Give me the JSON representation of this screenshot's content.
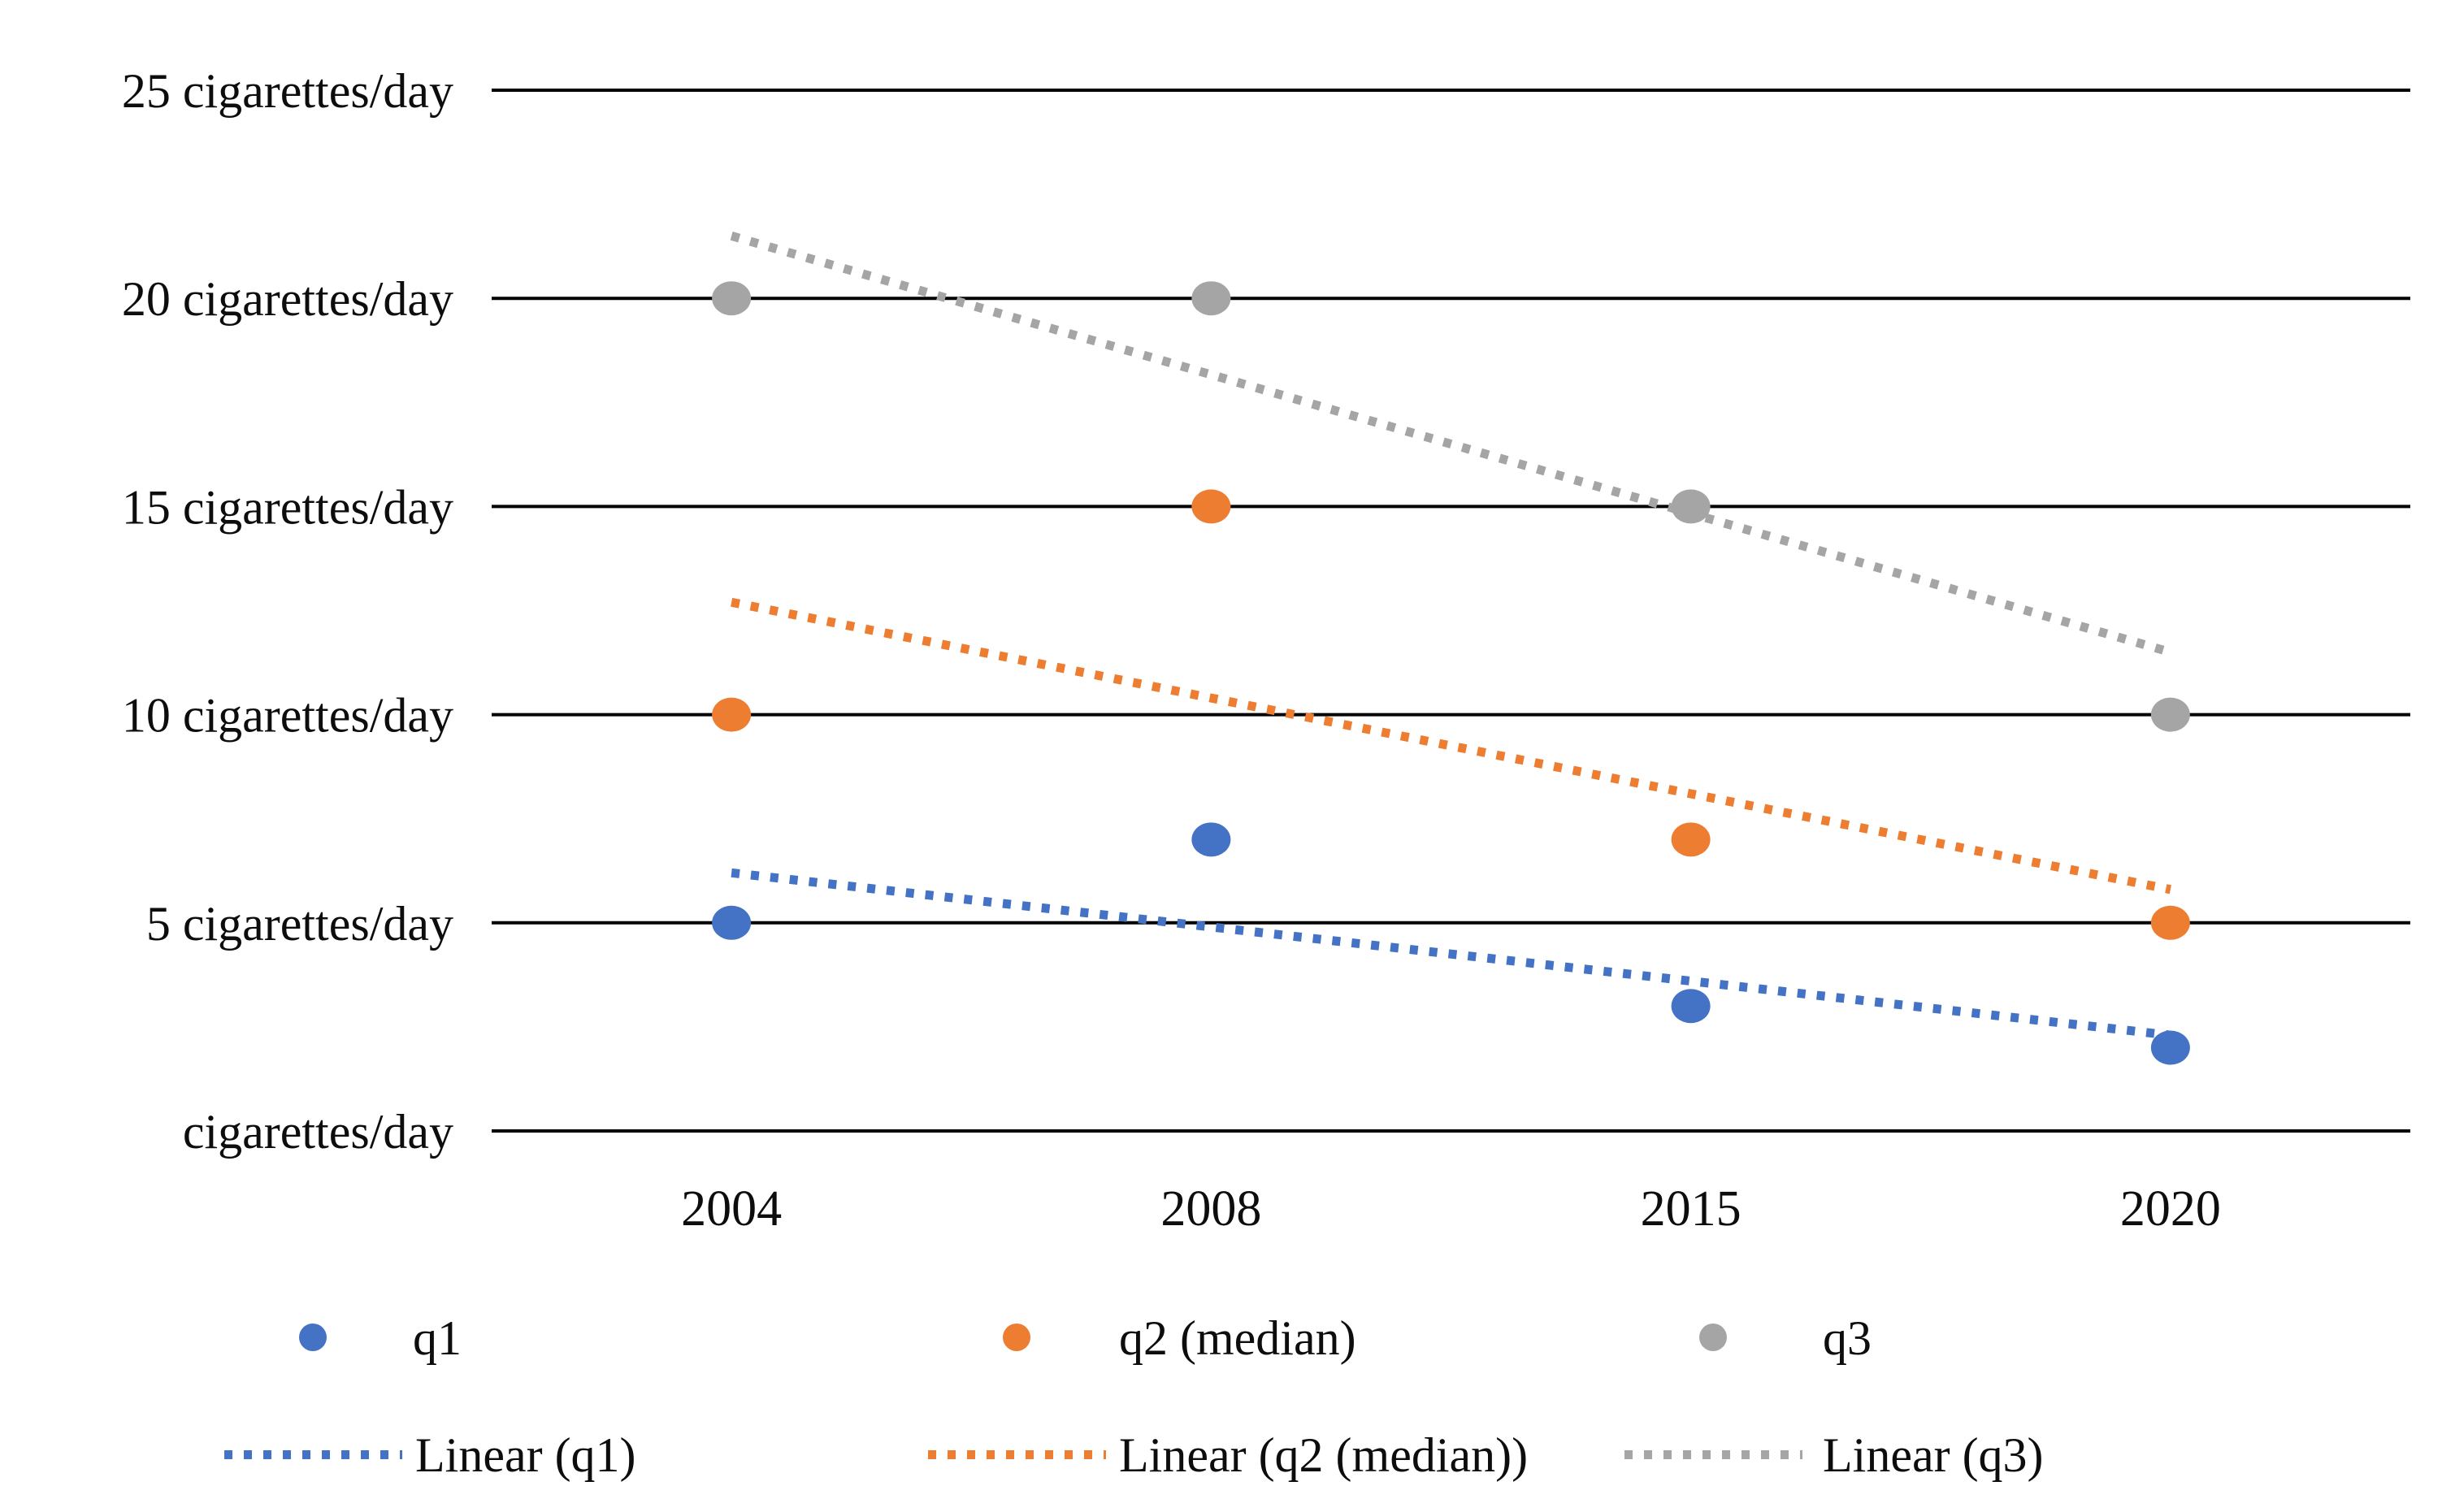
{
  "chart_data": {
    "type": "scatter",
    "categories": [
      "2004",
      "2008",
      "2015",
      "2020"
    ],
    "series": [
      {
        "name": "q1",
        "color": "#4472C4",
        "values": [
          5,
          7,
          3,
          2
        ]
      },
      {
        "name": "q2 (median)",
        "color": "#ED7D31",
        "values": [
          10,
          15,
          7,
          5
        ]
      },
      {
        "name": "q3",
        "color": "#A5A5A5",
        "values": [
          20,
          20,
          15,
          10
        ]
      }
    ],
    "trendlines": [
      {
        "name": "Linear (q1)",
        "color": "#4472C4",
        "start_value": 6.2,
        "end_value": 2.3
      },
      {
        "name": "Linear (q2 (median))",
        "color": "#ED7D31",
        "start_value": 12.7,
        "end_value": 5.8
      },
      {
        "name": "Linear (q3)",
        "color": "#A5A5A5",
        "start_value": 21.5,
        "end_value": 11.5
      }
    ],
    "y_axis": {
      "min": 0,
      "max": 25,
      "step": 5,
      "tick_labels": [
        "cigarettes/day",
        "5 cigarettes/day",
        "10 cigarettes/day",
        "15 cigarettes/day",
        "20 cigarettes/day",
        "25 cigarettes/day"
      ]
    },
    "x_axis": {
      "tick_labels": [
        "2004",
        "2008",
        "2015",
        "2020"
      ]
    },
    "grid": "horizontal-only",
    "gridline_color": "#000000",
    "legend_position": "bottom"
  },
  "legend": {
    "markers": [
      {
        "label": "q1",
        "color": "#4472C4"
      },
      {
        "label": "q2 (median)",
        "color": "#ED7D31"
      },
      {
        "label": "q3",
        "color": "#A5A5A5"
      }
    ],
    "lines": [
      {
        "label": "Linear (q1)",
        "color": "#4472C4"
      },
      {
        "label": "Linear (q2 (median))",
        "color": "#ED7D31"
      },
      {
        "label": "Linear (q3)",
        "color": "#A5A5A5"
      }
    ]
  }
}
